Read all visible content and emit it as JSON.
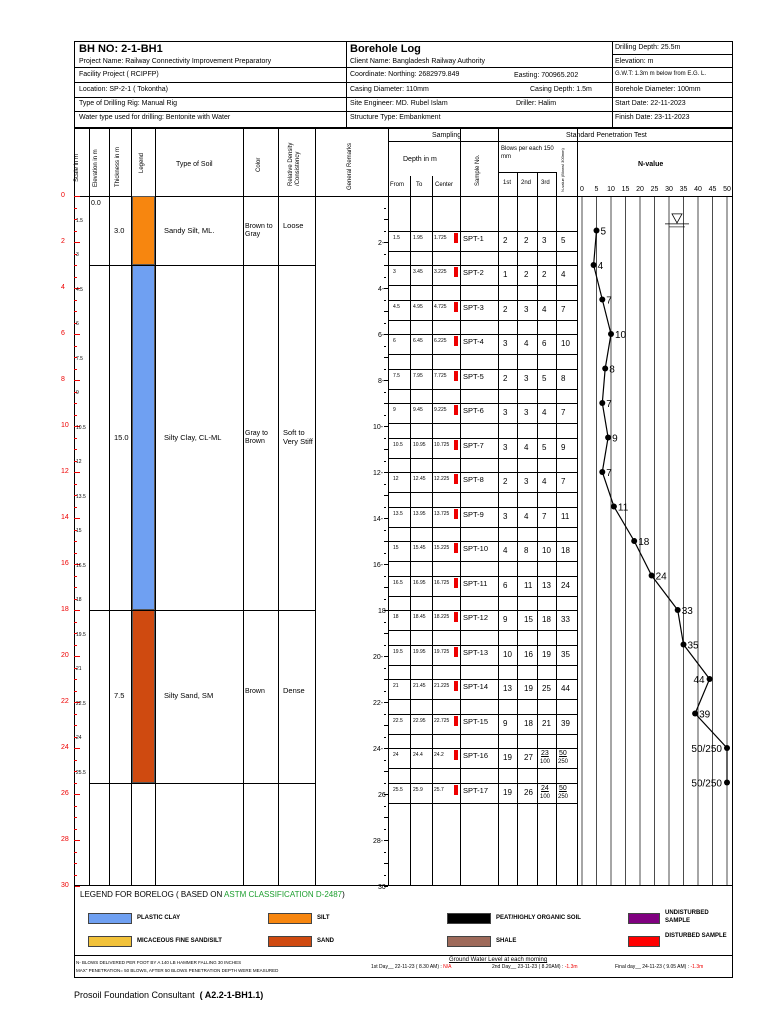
{
  "header": {
    "bh_no": "BH NO: 2-1-BH1",
    "project_name": "Project Name: Railway Connectivity Improvement Preparatory",
    "facility_project": "Facility Project   ( RCIPFP)",
    "location": "Location:  SP-2-1 ( Tokontha)",
    "drilling_rig": "Type of Drilling Rig:  Manual Rig",
    "water_type": "Water type used for drilling:  Bentonite with Water",
    "title": "Borehole Log",
    "client": "Client Name: Bangladesh Railway Authority",
    "coordinate": "Coordinate: Northing: 2682979.849",
    "easting": "Easting: 700965.202",
    "casing_diameter": "Casing Diameter:  110mm",
    "casing_depth": "Casing Depth: 1.5m",
    "site_engineer": "Site Engineer: MD. Rubel Islam",
    "driller": "Driller: Halim",
    "structure_type": "Structure Type: Embankment",
    "drilling_depth": "Drilling Depth: 25.5m",
    "elevation": "Elevation: m",
    "gwt": "G.W.T: 1.3m m below from E.G. L.",
    "borehole_diameter": "Borehole Diameter: 100mm",
    "start_date": "Start Date: 22-11-2023",
    "finish_date": "Finish Date: 23-11-2023"
  },
  "columns": {
    "scale": "Scale in m",
    "elevation": "Elevation in m",
    "thickness": "Thickness in m",
    "legend": "Legend",
    "type_of_soil": "Type of Soil",
    "color": "Color",
    "relative_density": "Relative Density /Consistency",
    "general_remarks": "General Remarks",
    "sampling": "Sampling",
    "depth": "Depth in m",
    "from": "From",
    "to": "To",
    "center": "Center",
    "sample_no": "Sample No.",
    "spt": "Standard Penetration Test",
    "blows_per": "Blows per each 150 mm",
    "b1": "1st",
    "b2": "2nd",
    "b3": "3rd",
    "n_value_col": "N-value (Blows/ 300mm)",
    "n_value": "N-value"
  },
  "scale_labels": [
    "0",
    "2",
    "4",
    "6",
    "8",
    "10",
    "12",
    "14",
    "16",
    "18",
    "20",
    "22",
    "24",
    "26",
    "28",
    "30"
  ],
  "depth_scale_labels": [
    "2-",
    "4-",
    "6-",
    "8-",
    "10-",
    "12-",
    "14-",
    "16-",
    "18",
    "20-",
    "22-",
    "24-",
    "26",
    "28-",
    "30"
  ],
  "elevation_labels": [
    "0.0",
    "1.5",
    "3",
    "4.5",
    "6",
    "7.5",
    "9",
    "10.5",
    "12",
    "13.5",
    "15",
    "16.5",
    "18",
    "19.5",
    "21",
    "22.5",
    "24",
    "25.5"
  ],
  "n_axis_ticks": [
    "0",
    "5",
    "10",
    "15",
    "20",
    "25",
    "30",
    "35",
    "40",
    "45",
    "50"
  ],
  "layers": [
    {
      "thickness": "3.0",
      "soil": "Sandy Silt, ML.",
      "color": "Brown to Gray",
      "density": "Loose",
      "fill": "#f7860f",
      "from": 0,
      "to": 3
    },
    {
      "thickness": "15.0",
      "soil": "Silty Clay, CL-ML",
      "color": "Gray to Brown",
      "density": "Soft to Very Stiff",
      "fill": "#6fa0f2",
      "from": 3,
      "to": 18
    },
    {
      "thickness": "7.5",
      "soil": "Silty Sand, SM",
      "color": "Brown",
      "density": "Dense",
      "fill": "#cf4a10",
      "from": 18,
      "to": 25.5
    }
  ],
  "samples": [
    {
      "from": "1.5",
      "to": "1.95",
      "center": "1.725",
      "no": "SPT-1",
      "b1": "2",
      "b2": "2",
      "b3": "3",
      "n": "5",
      "nlabel": "5",
      "depth": 1.5
    },
    {
      "from": "3",
      "to": "3.45",
      "center": "3.225",
      "no": "SPT-2",
      "b1": "1",
      "b2": "2",
      "b3": "2",
      "n": "4",
      "nlabel": "4",
      "depth": 3
    },
    {
      "from": "4.5",
      "to": "4.95",
      "center": "4.725",
      "no": "SPT-3",
      "b1": "2",
      "b2": "3",
      "b3": "4",
      "n": "7",
      "nlabel": "7",
      "depth": 4.5
    },
    {
      "from": "6",
      "to": "6.45",
      "center": "6.225",
      "no": "SPT-4",
      "b1": "3",
      "b2": "4",
      "b3": "6",
      "n": "10",
      "nlabel": "10",
      "depth": 6
    },
    {
      "from": "7.5",
      "to": "7.95",
      "center": "7.725",
      "no": "SPT-5",
      "b1": "2",
      "b2": "3",
      "b3": "5",
      "n": "8",
      "nlabel": "8",
      "depth": 7.5
    },
    {
      "from": "9",
      "to": "9.45",
      "center": "9.225",
      "no": "SPT-6",
      "b1": "3",
      "b2": "3",
      "b3": "4",
      "n": "7",
      "nlabel": "7",
      "depth": 9
    },
    {
      "from": "10.5",
      "to": "10.95",
      "center": "10.725",
      "no": "SPT-7",
      "b1": "3",
      "b2": "4",
      "b3": "5",
      "n": "9",
      "nlabel": "9",
      "depth": 10.5
    },
    {
      "from": "12",
      "to": "12.45",
      "center": "12.225",
      "no": "SPT-8",
      "b1": "2",
      "b2": "3",
      "b3": "4",
      "n": "7",
      "nlabel": "7",
      "depth": 12
    },
    {
      "from": "13.5",
      "to": "13.95",
      "center": "13.725",
      "no": "SPT-9",
      "b1": "3",
      "b2": "4",
      "b3": "7",
      "n": "11",
      "nlabel": "11",
      "depth": 13.5
    },
    {
      "from": "15",
      "to": "15.45",
      "center": "15.225",
      "no": "SPT-10",
      "b1": "4",
      "b2": "8",
      "b3": "10",
      "n": "18",
      "nlabel": "18",
      "depth": 15
    },
    {
      "from": "16.5",
      "to": "16.95",
      "center": "16.725",
      "no": "SPT-11",
      "b1": "6",
      "b2": "11",
      "b3": "13",
      "n": "24",
      "nlabel": "24",
      "depth": 16.5
    },
    {
      "from": "18",
      "to": "18.45",
      "center": "18.225",
      "no": "SPT-12",
      "b1": "9",
      "b2": "15",
      "b3": "18",
      "n": "33",
      "nlabel": "33",
      "depth": 18
    },
    {
      "from": "19.5",
      "to": "19.95",
      "center": "19.725",
      "no": "SPT-13",
      "b1": "10",
      "b2": "16",
      "b3": "19",
      "n": "35",
      "nlabel": "35",
      "depth": 19.5
    },
    {
      "from": "21",
      "to": "21.45",
      "center": "21.225",
      "no": "SPT-14",
      "b1": "13",
      "b2": "19",
      "b3": "25",
      "n": "44",
      "nlabel": "44",
      "depth": 21
    },
    {
      "from": "22.5",
      "to": "22.95",
      "center": "22.725",
      "no": "SPT-15",
      "b1": "9",
      "b2": "18",
      "b3": "21",
      "n": "39",
      "nlabel": "39",
      "depth": 22.5
    },
    {
      "from": "24",
      "to": "24.4",
      "center": "24.2",
      "no": "SPT-16",
      "b1": "19",
      "b2": "27",
      "b3": "23",
      "b3sub": "100",
      "n": "50",
      "nsub": "250",
      "nlabel": "50/250",
      "depth": 24
    },
    {
      "from": "25.5",
      "to": "25.9",
      "center": "25.7",
      "no": "SPT-17",
      "b1": "19",
      "b2": "26",
      "b3": "24",
      "b3sub": "100",
      "n": "50",
      "nsub": "250",
      "nlabel": "50/250",
      "depth": 25.5
    }
  ],
  "chart_data": {
    "type": "line",
    "title": "N-value",
    "x_label": "N-value",
    "y_label": "Depth in m",
    "xlim": [
      0,
      50
    ],
    "ylim": [
      30,
      0
    ],
    "series": [
      {
        "x": [
          5,
          4,
          7,
          10,
          8,
          7,
          9,
          7,
          11,
          18,
          24,
          33,
          35,
          44,
          39,
          50,
          50
        ],
        "y": [
          1.5,
          3,
          4.5,
          6,
          7.5,
          9,
          10.5,
          12,
          13.5,
          15,
          16.5,
          18,
          19.5,
          21,
          22.5,
          24,
          25.5
        ]
      }
    ],
    "ground_water_depth": 1.3
  },
  "legend": {
    "title": "LEGEND FOR BORELOG  ( BASED ON ",
    "title_highlight": "ASTM CLASSIFICATION D-2487",
    "title_end": ")",
    "items": [
      {
        "label": "PLASTIC CLAY",
        "color": "#6fa0f2"
      },
      {
        "label": "SILT",
        "color": "#f7860f"
      },
      {
        "label": "PEAT/HIGHLY ORGANIC SOIL",
        "color": "#000000"
      },
      {
        "label": "UNDISTURBED SAMPLE",
        "color": "#800080"
      },
      {
        "label": "MICACEOUS FINE SAND/SILT",
        "color": "#f2c23a"
      },
      {
        "label": "SAND",
        "color": "#cf4a10"
      },
      {
        "label": "SHALE",
        "color": "#9e6a5a"
      },
      {
        "label": "DISTURBED SAMPLE",
        "color": "#ff0000"
      }
    ]
  },
  "notes": {
    "n_note": "N- BLOWS DELIVERED PER FOOT BY A 140 LB HAMMER FALLING 30 INCHES",
    "max_note": "MAX\" PENETRATION= 50 BLOWS, AFTER 50 BLOWS PENETRATION DEPTH WERE MEASURED",
    "gw_title": "Ground Water Level at each morning",
    "day1": "1st Day__ 22-11-23  ( 8.30 AM)  :",
    "day1_val": "N/A",
    "day2": "2nd Day__ 23-11-23  ( 8.20AM)  :",
    "day2_val": "-1.3m",
    "final": "Final day__ 24-11-23  ( 9.05 AM)  :",
    "final_val": "-1.3m"
  },
  "footer": {
    "company": "Prosoil Foundation Consultant",
    "ref": "( A2.2-1-BH1.1)"
  }
}
